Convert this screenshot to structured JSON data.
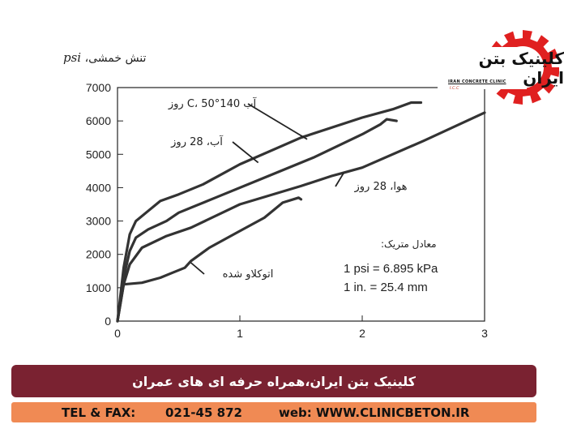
{
  "chart_data": {
    "type": "line",
    "ylabel_text": "تنش خمشی،",
    "ylabel_unit": "psi",
    "xlim": [
      0,
      3
    ],
    "ylim": [
      0,
      7000
    ],
    "x_ticks": [
      "0",
      "1",
      "2",
      "3"
    ],
    "y_ticks": [
      "0",
      "1000",
      "2000",
      "3000",
      "4000",
      "5000",
      "6000",
      "7000"
    ],
    "series": [
      {
        "name": "آب 140°C، 50 روز",
        "points": [
          [
            0,
            0
          ],
          [
            0.05,
            1600
          ],
          [
            0.1,
            2600
          ],
          [
            0.15,
            3000
          ],
          [
            0.25,
            3300
          ],
          [
            0.35,
            3600
          ],
          [
            0.5,
            3800
          ],
          [
            0.7,
            4100
          ],
          [
            1.0,
            4700
          ],
          [
            1.5,
            5500
          ],
          [
            2.0,
            6100
          ],
          [
            2.25,
            6350
          ],
          [
            2.4,
            6550
          ],
          [
            2.48,
            6550
          ]
        ]
      },
      {
        "name": "آب، 28 روز",
        "points": [
          [
            0,
            0
          ],
          [
            0.05,
            1300
          ],
          [
            0.1,
            2100
          ],
          [
            0.15,
            2500
          ],
          [
            0.25,
            2750
          ],
          [
            0.4,
            3000
          ],
          [
            0.5,
            3250
          ],
          [
            0.8,
            3700
          ],
          [
            1.2,
            4300
          ],
          [
            1.6,
            4900
          ],
          [
            2.0,
            5600
          ],
          [
            2.15,
            5900
          ],
          [
            2.2,
            6050
          ],
          [
            2.28,
            6000
          ]
        ]
      },
      {
        "name": "هوا، 28 روز",
        "points": [
          [
            0,
            0
          ],
          [
            0.05,
            1100
          ],
          [
            0.1,
            1700
          ],
          [
            0.2,
            2200
          ],
          [
            0.4,
            2550
          ],
          [
            0.6,
            2800
          ],
          [
            1.0,
            3500
          ],
          [
            1.5,
            4050
          ],
          [
            1.75,
            4350
          ],
          [
            1.85,
            4450
          ],
          [
            2.0,
            4600
          ],
          [
            2.5,
            5400
          ],
          [
            3.0,
            6250
          ]
        ]
      },
      {
        "name": "اتوکلاو شده",
        "points": [
          [
            0,
            0
          ],
          [
            0.05,
            1100
          ],
          [
            0.2,
            1150
          ],
          [
            0.35,
            1300
          ],
          [
            0.45,
            1450
          ],
          [
            0.55,
            1600
          ],
          [
            0.6,
            1800
          ],
          [
            0.75,
            2200
          ],
          [
            1.0,
            2700
          ],
          [
            1.2,
            3100
          ],
          [
            1.35,
            3550
          ],
          [
            1.48,
            3700
          ],
          [
            1.5,
            3650
          ]
        ]
      }
    ],
    "annotations": [
      {
        "series": 0,
        "label": "آب 140°C، 50 روز",
        "at": [
          1.55,
          5450
        ]
      },
      {
        "series": 1,
        "label": "آب، 28 روز",
        "at": [
          1.15,
          4750
        ]
      },
      {
        "series": 2,
        "label": "هوا، 28 روز",
        "at": [
          1.85,
          4450
        ]
      },
      {
        "series": 3,
        "label": "اتوکلاو شده",
        "at": [
          0.6,
          1750
        ]
      }
    ],
    "conversion_note": {
      "title": "معادل متریک:",
      "line1": "1 psi = 6.895 kPa",
      "line2": "1 in. = 25.4 mm"
    },
    "grid": false,
    "curve_color": "#333333"
  },
  "logo": {
    "title": "کلینیک بتن ایران",
    "subtitle": "IRAN CONCRETE CLINIC",
    "abbr": "I.C.C",
    "gear_color": "#e02020"
  },
  "banner": {
    "text": "کلینیک بتن ایران،همراه حرفه ای های عمران",
    "bg_color": "#7a2231"
  },
  "contact": {
    "tel_label": "TEL & FAX:",
    "tel_number": "021-45 872",
    "web_label": "web: WWW.CLINICBETON.IR",
    "bg_color": "#f08a54"
  }
}
